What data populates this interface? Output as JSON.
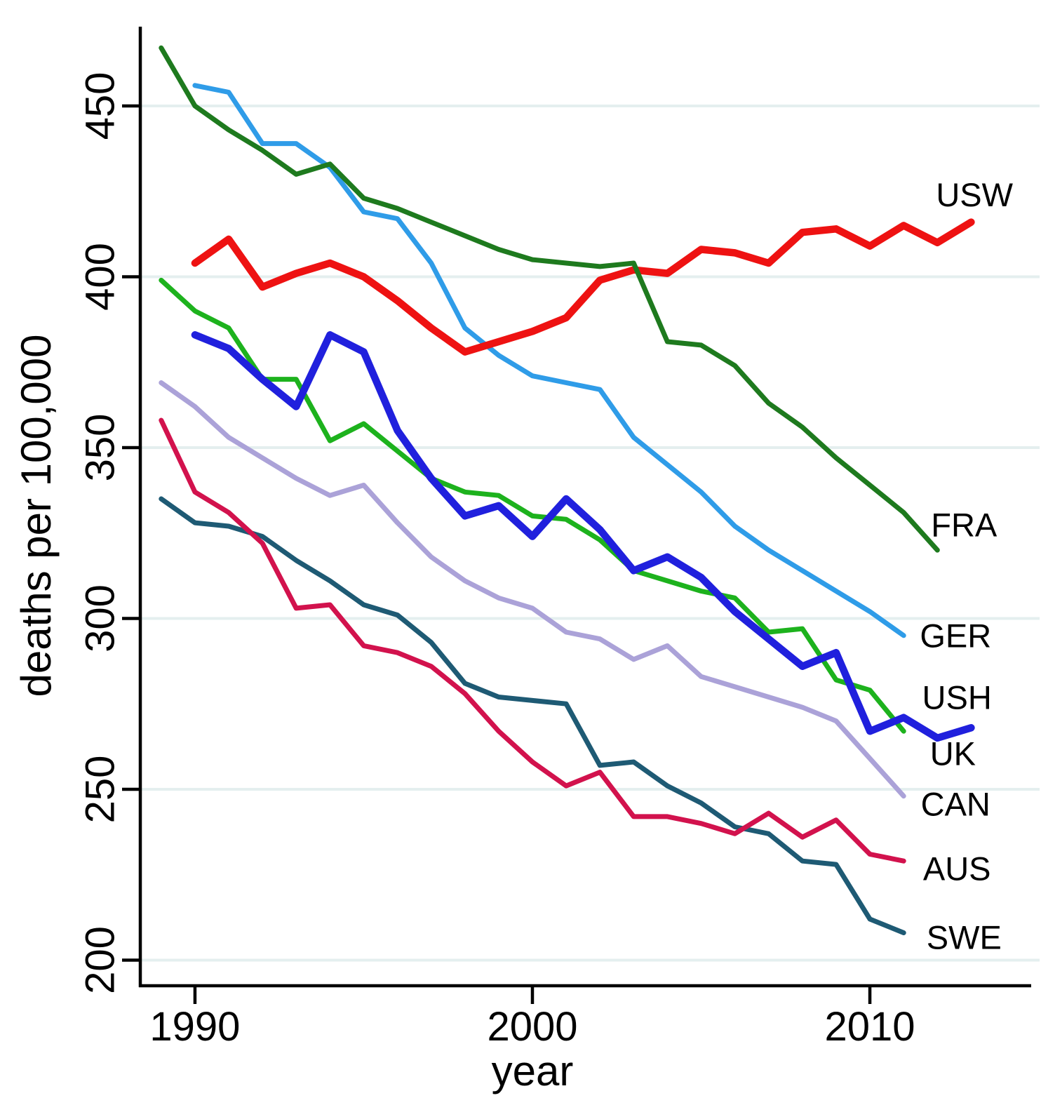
{
  "chart_data": {
    "type": "line",
    "title": "",
    "xlabel": "year",
    "ylabel": "deaths per 100,000",
    "x_ticks": [
      1990,
      2000,
      2010
    ],
    "y_ticks": [
      200,
      250,
      300,
      350,
      400,
      450
    ],
    "xlim": [
      1988.38,
      2014.78
    ],
    "ylim": [
      192.5,
      473.2
    ],
    "grid": "horizontal",
    "legend_position": "end-of-line-labels",
    "colors": {
      "background": "#ffffff",
      "axis": "#000000",
      "gridline": "#e4efef",
      "text": "#000000"
    },
    "series": [
      {
        "name": "GER",
        "color": "#2f9ce8",
        "width": 7,
        "start_year": 1990,
        "values": [
          456,
          454,
          439,
          439,
          432,
          419,
          417,
          404,
          385,
          377,
          371,
          369,
          367,
          353,
          345,
          337,
          327,
          320,
          314,
          308,
          302,
          295
        ],
        "label": {
          "text": "GER",
          "year": 2012.54,
          "value": 295.0
        }
      },
      {
        "name": "USW",
        "color": "#ee1212",
        "width": 10.5,
        "start_year": 1990,
        "values": [
          404,
          411,
          397,
          401,
          404,
          400,
          393,
          385,
          378,
          381,
          384,
          388,
          399,
          402,
          401,
          408,
          407,
          404,
          413,
          414,
          409,
          415,
          410,
          416
        ],
        "label": {
          "text": "USW",
          "year": 2013.1,
          "value": 424.0
        }
      },
      {
        "name": "FRA",
        "color": "#1e7a1e",
        "width": 7,
        "start_year": 1989,
        "values": [
          467,
          450,
          443,
          437,
          430,
          433,
          423,
          420,
          416,
          412,
          408,
          405,
          404,
          403,
          404,
          381,
          380,
          374,
          363,
          356,
          347,
          339,
          331,
          320
        ],
        "label": {
          "text": "FRA",
          "year": 2012.79,
          "value": 327.4
        }
      },
      {
        "name": "CAN",
        "color": "#aba2d8",
        "width": 7,
        "start_year": 1989,
        "values": [
          369,
          362,
          353,
          347,
          341,
          336,
          339,
          328,
          318,
          311,
          306,
          303,
          296,
          294,
          288,
          292,
          283,
          280,
          277,
          274,
          270,
          259,
          248
        ],
        "label": {
          "text": "CAN",
          "year": 2012.54,
          "value": 245.7
        }
      },
      {
        "name": "SWE",
        "color": "#1e5a74",
        "width": 7,
        "start_year": 1989,
        "values": [
          335,
          328,
          327,
          324,
          317,
          311,
          304,
          301,
          293,
          281,
          277,
          276,
          275,
          257,
          258,
          251,
          246,
          239,
          237,
          229,
          228,
          212,
          208
        ],
        "label": {
          "text": "SWE",
          "year": 2012.79,
          "value": 206.7
        }
      },
      {
        "name": "AUS",
        "color": "#d2124d",
        "width": 7,
        "start_year": 1989,
        "values": [
          358,
          337,
          331,
          322,
          303,
          304,
          292,
          290,
          286,
          278,
          267,
          258,
          251,
          255,
          242,
          242,
          240,
          237,
          243,
          236,
          241,
          231,
          229
        ],
        "label": {
          "text": "AUS",
          "year": 2012.58,
          "value": 226.8
        }
      },
      {
        "name": "USH",
        "color": "#1db21d",
        "width": 7,
        "start_year": 1989,
        "values": [
          399,
          390,
          385,
          370,
          370,
          352,
          357,
          349,
          341,
          337,
          336,
          330,
          329,
          323,
          314,
          311,
          308,
          306,
          296,
          297,
          282,
          279,
          267
        ],
        "label": {
          "text": "USH",
          "year": 2012.58,
          "value": 276.9
        }
      },
      {
        "name": "UK",
        "color": "#2020dd",
        "width": 10.5,
        "start_year": 1990,
        "values": [
          383,
          379,
          370,
          362,
          383,
          378,
          355,
          341,
          330,
          333,
          324,
          335,
          326,
          314,
          318,
          312,
          302,
          294,
          286,
          290,
          267,
          271,
          265,
          268
        ],
        "label": {
          "text": "UK",
          "year": 2012.46,
          "value": 260.5
        }
      }
    ]
  }
}
